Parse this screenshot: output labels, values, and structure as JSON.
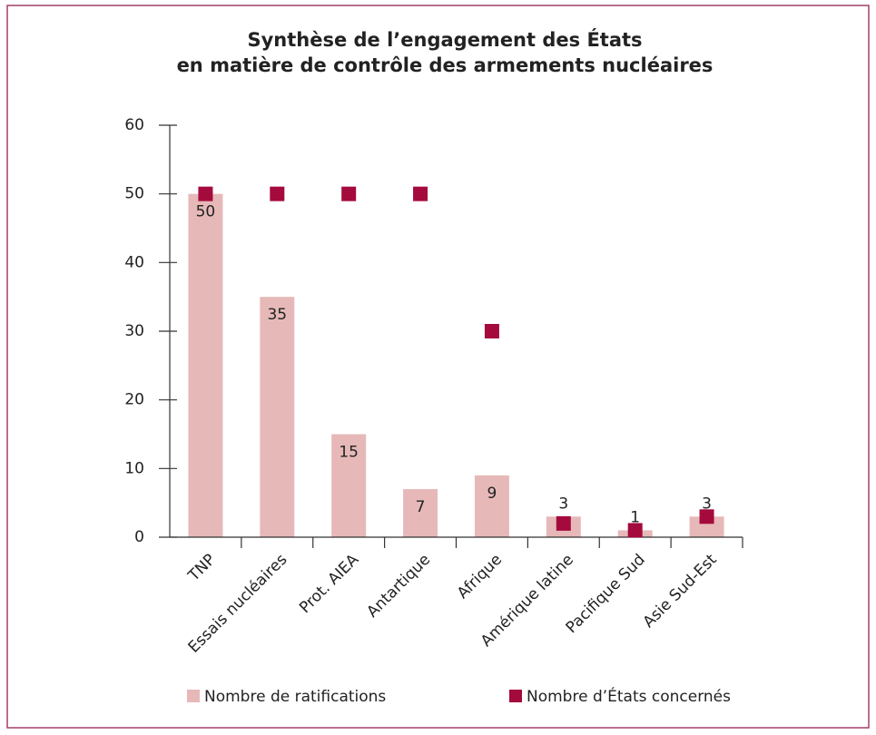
{
  "chart_data": {
    "type": "bar",
    "title": [
      "Synthèse de l’engagement des États",
      "en matière de contrôle des armements nucléaires"
    ],
    "categories": [
      "TNP",
      "Essais nucléaires",
      "Prot. AIEA",
      "Antartique",
      "Afrique",
      "Amérique latine",
      "Pacifique Sud",
      "Asie Sud-Est"
    ],
    "series": [
      {
        "name": "Nombre de ratifications",
        "color": "#e6b9b8",
        "type": "bar",
        "values": [
          50,
          35,
          15,
          7,
          9,
          3,
          1,
          3
        ]
      },
      {
        "name": "Nombre d’États concernés",
        "color": "#a50a3c",
        "type": "scatter",
        "marker": "square",
        "values": [
          50,
          50,
          50,
          50,
          30,
          2,
          1,
          3
        ]
      }
    ],
    "ylim": [
      0,
      60
    ],
    "yticks": [
      0,
      10,
      20,
      30,
      40,
      50,
      60
    ],
    "grid": false,
    "legend": "bottom"
  }
}
